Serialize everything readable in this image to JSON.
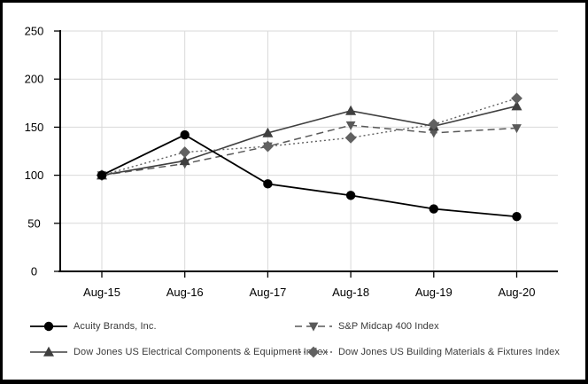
{
  "chart_data": {
    "type": "line",
    "categories": [
      "Aug-15",
      "Aug-16",
      "Aug-17",
      "Aug-18",
      "Aug-19",
      "Aug-20"
    ],
    "y_ticks": [
      0,
      50,
      100,
      150,
      200,
      250
    ],
    "ylim": [
      0,
      250
    ],
    "grid": true,
    "legend_position": "bottom",
    "series": [
      {
        "name": "Acuity Brands, Inc.",
        "values": [
          100,
          142,
          91,
          79,
          65,
          57
        ],
        "color": "#000000",
        "line_style": "solid",
        "marker": "circle"
      },
      {
        "name": "S&P Midcap 400 Index",
        "values": [
          100,
          112,
          130,
          152,
          144,
          149
        ],
        "color": "#595959",
        "line_style": "dashed",
        "marker": "triangle-down"
      },
      {
        "name": "Dow Jones US Electrical Components & Equipment Index",
        "values": [
          100,
          115,
          144,
          167,
          151,
          172
        ],
        "color": "#3f3f3f",
        "line_style": "solid",
        "marker": "triangle-up"
      },
      {
        "name": "Dow Jones US Building Materials & Fixtures Index",
        "values": [
          100,
          124,
          130,
          139,
          153,
          180
        ],
        "color": "#616161",
        "line_style": "dotted",
        "marker": "diamond"
      }
    ],
    "colors": {
      "gridline": "#d9d9d9",
      "axis": "#000000",
      "tick_label": "#000000",
      "legend_text": "#3a3a3a",
      "frame_border": "#000000",
      "background": "#ffffff"
    }
  }
}
